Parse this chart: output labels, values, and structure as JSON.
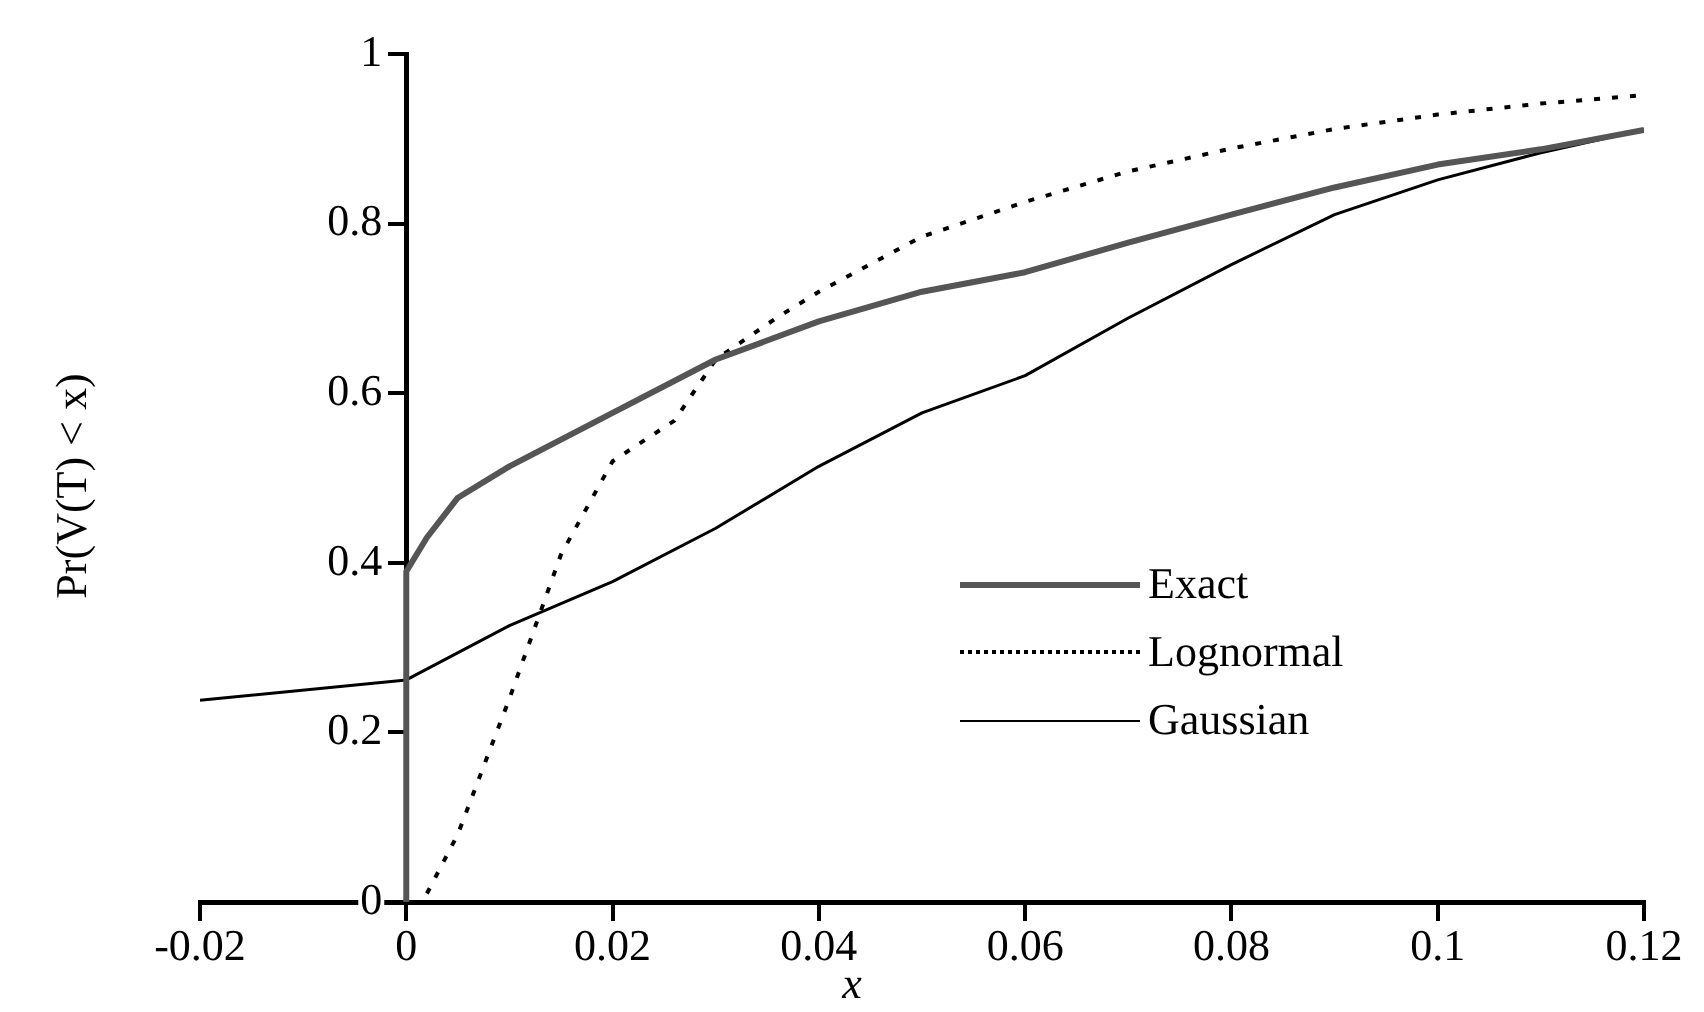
{
  "chart_data": {
    "type": "line",
    "xlabel": "x",
    "ylabel": "Pr(V(T) < x)",
    "xlim": [
      -0.02,
      0.12
    ],
    "xticks": [
      -0.02,
      0,
      0.02,
      0.04,
      0.06,
      0.08,
      0.1,
      0.12
    ],
    "ylim": [
      0,
      1
    ],
    "yticks": [
      0,
      0.2,
      0.4,
      0.6,
      0.8,
      1
    ],
    "grid": false,
    "legend": "right",
    "marker": "none",
    "series": [
      {
        "name": "Exact",
        "color": "#555555",
        "line_style": "solid",
        "x": [
          0,
          0,
          0.002,
          0.005,
          0.01,
          0.02,
          0.03,
          0.04,
          0.05,
          0.06,
          0.07,
          0.08,
          0.09,
          0.1,
          0.11,
          0.12
        ],
        "values": [
          0,
          0.39,
          0.43,
          0.477,
          0.514,
          0.577,
          0.64,
          0.685,
          0.72,
          0.743,
          0.778,
          0.811,
          0.843,
          0.87,
          0.888,
          0.911
        ]
      },
      {
        "name": "Lognormal",
        "color": "#000000",
        "line_style": "dotted",
        "x": [
          0.002,
          0.005,
          0.01,
          0.015,
          0.02,
          0.026,
          0.03,
          0.036,
          0.04,
          0.05,
          0.06,
          0.07,
          0.08,
          0.09,
          0.1,
          0.11,
          0.12
        ],
        "values": [
          0.01,
          0.08,
          0.24,
          0.41,
          0.52,
          0.568,
          0.64,
          0.69,
          0.72,
          0.785,
          0.826,
          0.862,
          0.889,
          0.912,
          0.929,
          0.942,
          0.952
        ]
      },
      {
        "name": "Gaussian",
        "color": "#000000",
        "line_style": "solid",
        "x": [
          -0.02,
          0,
          0.01,
          0.02,
          0.03,
          0.04,
          0.05,
          0.06,
          0.07,
          0.08,
          0.09,
          0.1,
          0.11,
          0.12
        ],
        "values": [
          0.238,
          0.262,
          0.326,
          0.378,
          0.441,
          0.514,
          0.577,
          0.621,
          0.689,
          0.752,
          0.811,
          0.852,
          0.884,
          0.911
        ]
      }
    ]
  }
}
